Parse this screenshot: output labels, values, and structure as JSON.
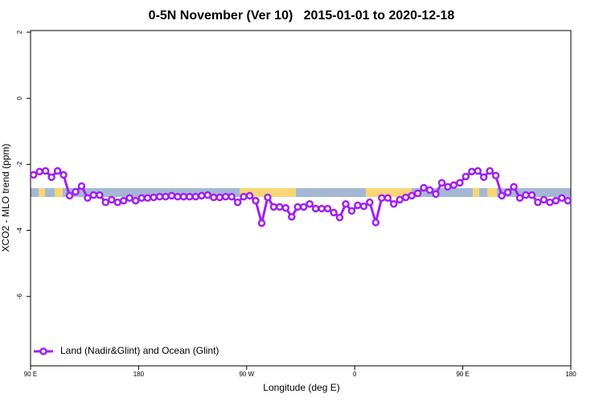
{
  "chart_data": {
    "type": "line",
    "title": "0-5N November (Ver 10)   2015-01-01 to 2020-12-18",
    "x_label": "Longitude (deg E)",
    "y_label": "XCO2 - MLO trend (ppm)",
    "xlim": [
      90,
      540
    ],
    "ylim": [
      -8.1,
      2.05
    ],
    "xticks": [
      {
        "value": 90,
        "label": "90 E"
      },
      180,
      {
        "value": 270,
        "label": "90 W"
      },
      {
        "value": 360,
        "label": "0"
      },
      {
        "value": 450,
        "label": "90 E"
      },
      {
        "value": 540,
        "label": "180"
      }
    ],
    "yticks": [
      2,
      0,
      -2,
      -4,
      -6
    ],
    "legend": "bottom-left",
    "x": [
      92.5,
      97.5,
      102.5,
      107.5,
      112.5,
      117.5,
      122.5,
      127.5,
      132.5,
      137.5,
      142.5,
      147.5,
      152.5,
      157.5,
      162.5,
      167.5,
      172.5,
      177.5,
      182.5,
      187.5,
      192.5,
      197.5,
      202.5,
      207.5,
      212.5,
      217.5,
      222.5,
      227.5,
      232.5,
      237.5,
      242.5,
      247.5,
      252.5,
      257.5,
      262.5,
      267.5,
      272.5,
      277.5,
      282.5,
      287.5,
      292.5,
      297.5,
      302.5,
      307.5,
      312.5,
      317.5,
      322.5,
      327.5,
      332.5,
      337.5,
      342.5,
      347.5,
      352.5,
      357.5,
      362.5,
      367.5,
      372.5,
      377.5,
      382.5,
      387.5,
      392.5,
      397.5,
      402.5,
      407.5,
      412.5,
      417.5,
      422.5,
      427.5,
      432.5,
      437.5,
      442.5,
      447.5,
      452.5,
      457.5,
      462.5,
      467.5,
      472.5,
      477.5,
      482.5,
      487.5,
      492.5,
      497.5,
      502.5,
      507.5,
      512.5,
      517.5,
      522.5,
      527.5,
      532.5,
      537.5
    ],
    "series": [
      {
        "name": "Land (Nadir&Glint) and Ocean (Glint)",
        "color": "#a020f0",
        "values": [
          -2.32,
          -2.22,
          -2.2,
          -2.39,
          -2.2,
          -2.32,
          -2.95,
          -2.83,
          -2.66,
          -3.02,
          -2.93,
          -2.93,
          -3.15,
          -3.07,
          -3.15,
          -3.1,
          -3.02,
          -3.1,
          -3.02,
          -3.02,
          -3.0,
          -2.98,
          -2.98,
          -2.95,
          -2.98,
          -2.98,
          -2.98,
          -2.98,
          -2.95,
          -2.93,
          -3.0,
          -3.0,
          -2.98,
          -2.98,
          -3.15,
          -2.98,
          -2.95,
          -3.1,
          -3.78,
          -3.0,
          -3.29,
          -3.29,
          -3.32,
          -3.59,
          -3.29,
          -3.29,
          -3.2,
          -3.34,
          -3.34,
          -3.34,
          -3.46,
          -3.61,
          -3.2,
          -3.41,
          -3.24,
          -3.27,
          -3.15,
          -3.76,
          -3.02,
          -3.02,
          -3.2,
          -3.07,
          -3.0,
          -2.95,
          -2.88,
          -2.71,
          -2.78,
          -2.9,
          -2.56,
          -2.68,
          -2.63,
          -2.56,
          -2.37,
          -2.22,
          -2.2,
          -2.39,
          -2.2,
          -2.34,
          -2.95,
          -2.85,
          -2.68,
          -3.02,
          -2.93,
          -2.93,
          -3.15,
          -3.07,
          -3.15,
          -3.1,
          -3.02,
          -3.1
        ]
      }
    ]
  }
}
